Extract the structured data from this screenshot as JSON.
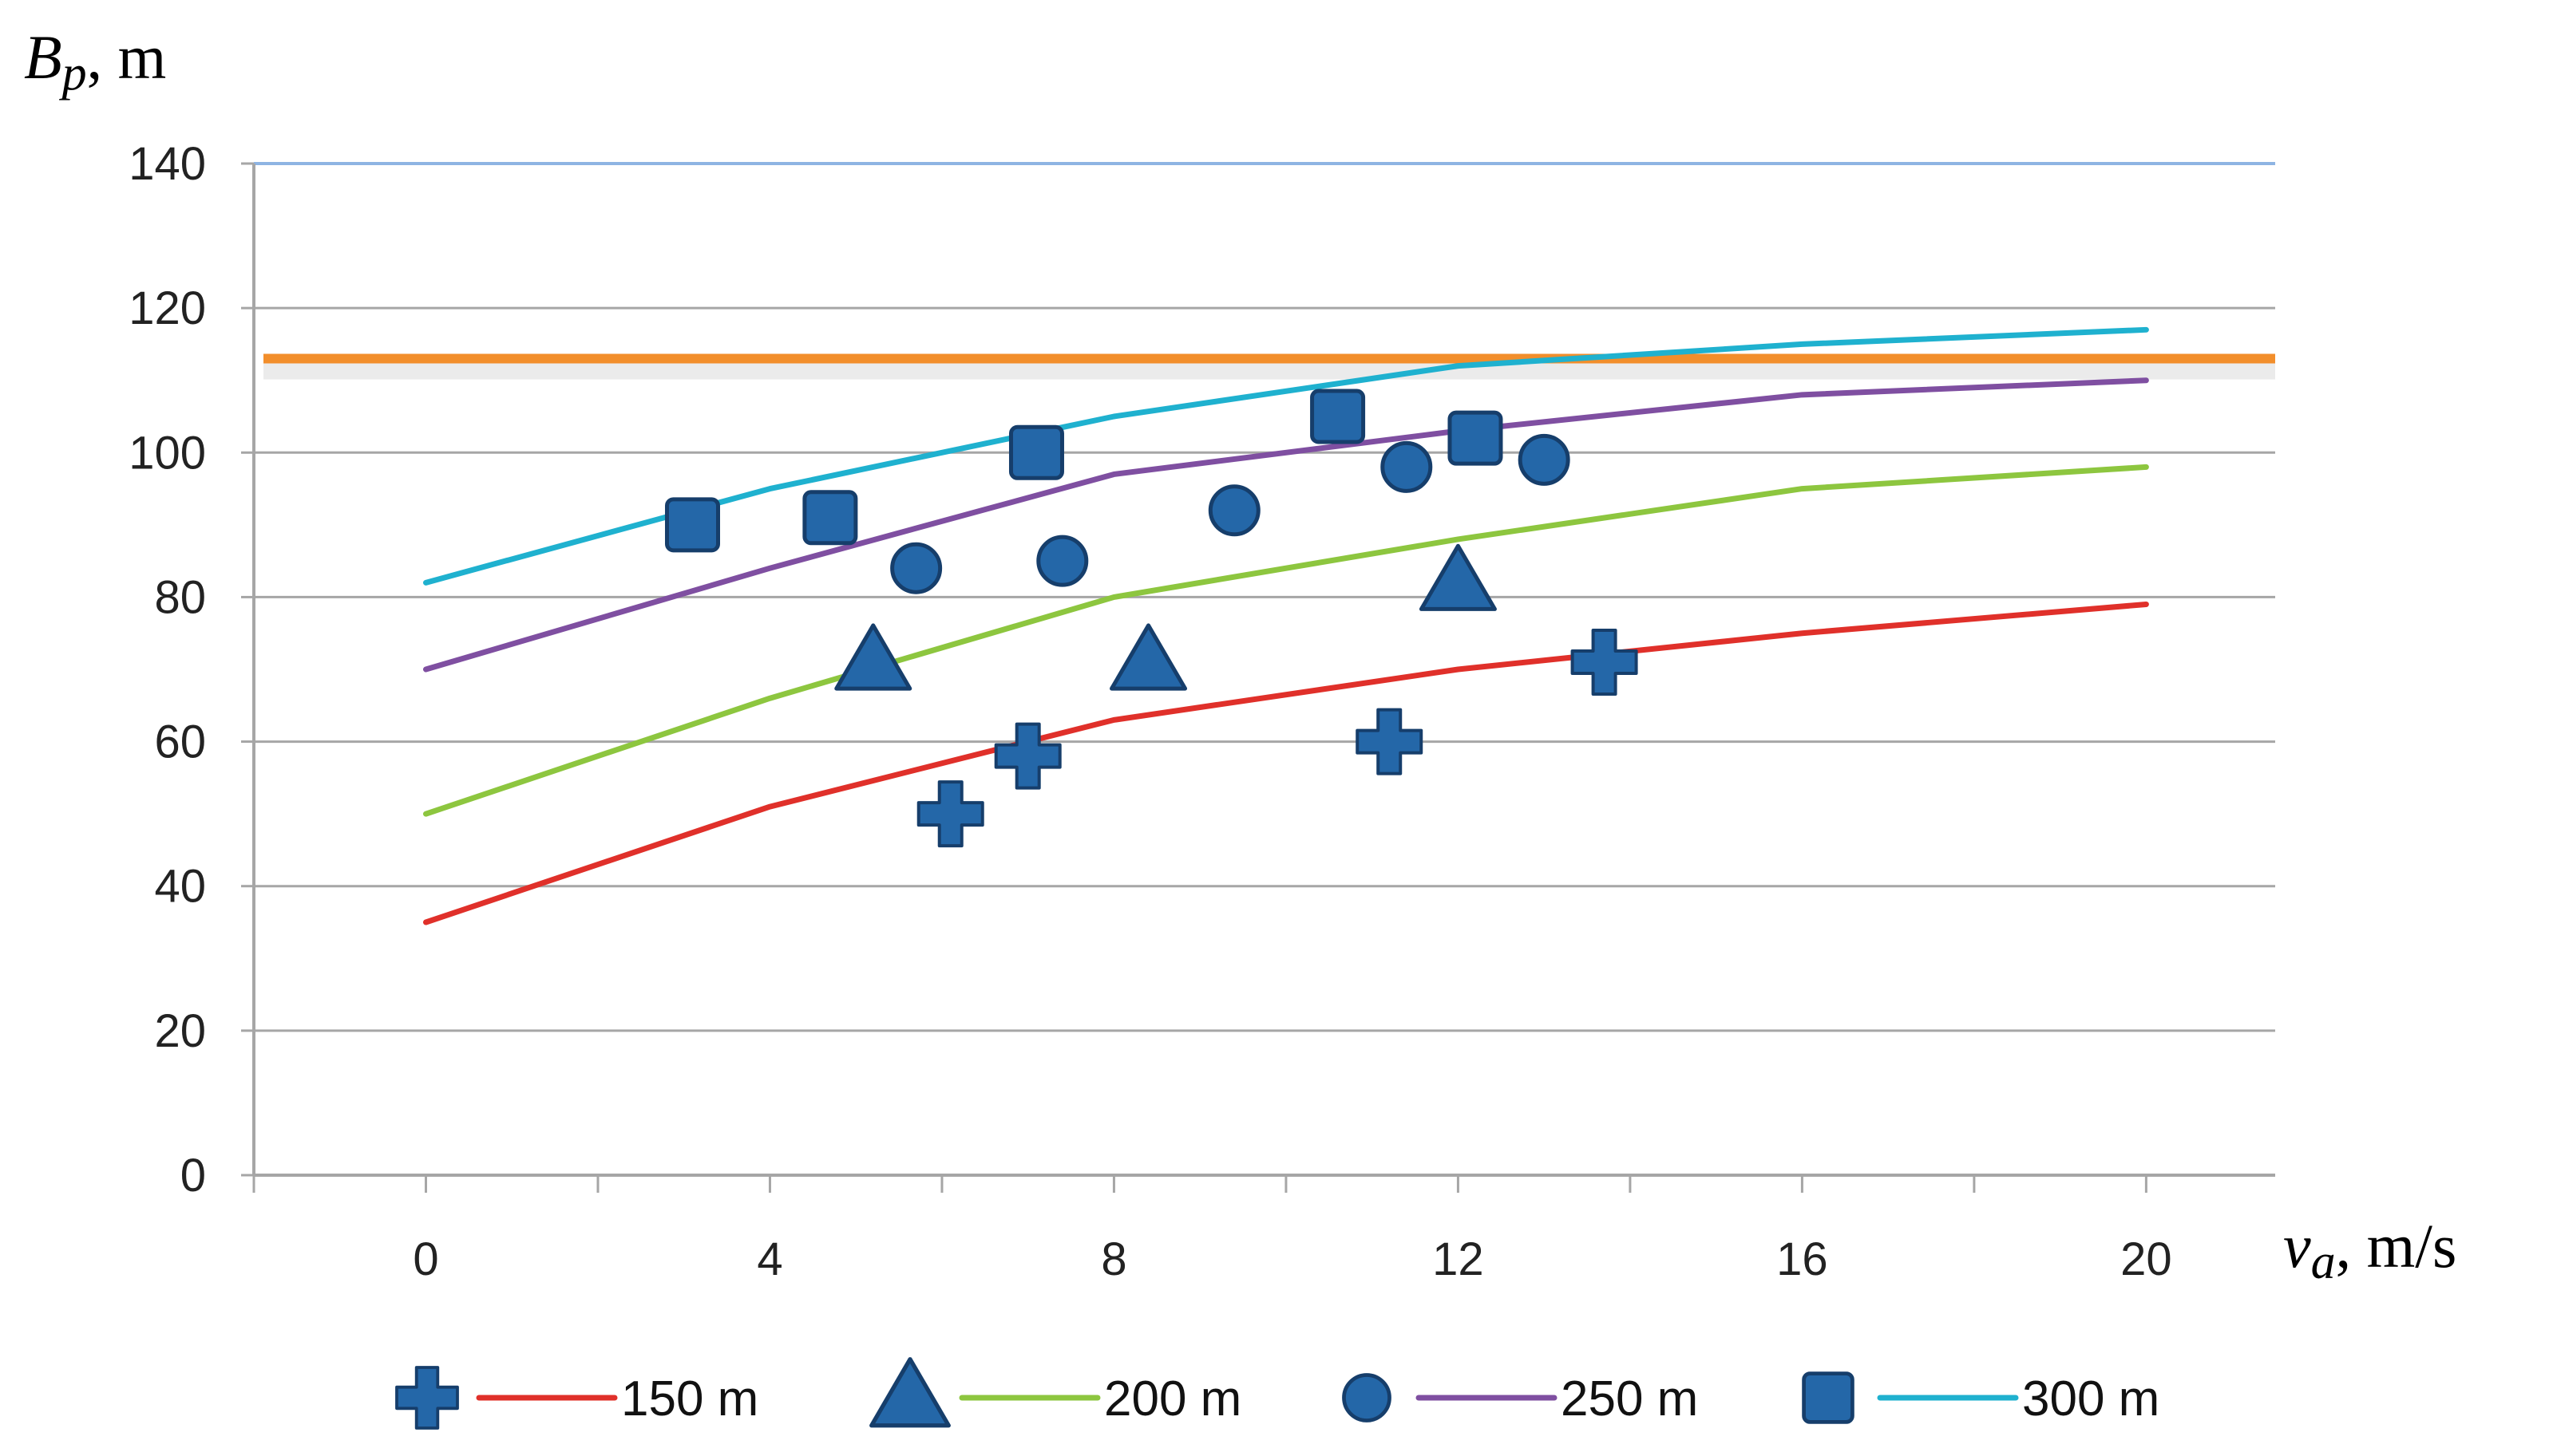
{
  "chart_data": {
    "type": "line",
    "title": "",
    "ylabel": {
      "symbol": "B",
      "subscript": "p",
      "unit": ", m"
    },
    "xlabel": {
      "symbol": "v",
      "subscript": "a",
      "unit": ", m/s"
    },
    "xlim": [
      -2,
      21.5
    ],
    "ylim": [
      0,
      140
    ],
    "xticks": [
      0,
      4,
      8,
      12,
      16,
      20
    ],
    "yticks": [
      0,
      20,
      40,
      60,
      80,
      100,
      120,
      140
    ],
    "grid": true,
    "reference_line": {
      "y": 113,
      "color": "#f28e2b"
    },
    "series": [
      {
        "name": "150 m",
        "color": "#e0302a",
        "marker": "plus",
        "line": {
          "x": [
            0,
            4,
            8,
            12,
            16,
            20
          ],
          "y": [
            35,
            51,
            63,
            70,
            75,
            79
          ]
        },
        "points": {
          "x": [
            6.1,
            7.0,
            11.2,
            13.7
          ],
          "y": [
            50,
            58,
            60,
            71
          ]
        }
      },
      {
        "name": "200 m",
        "color": "#8dc63f",
        "marker": "triangle",
        "line": {
          "x": [
            0,
            4,
            8,
            12,
            16,
            20
          ],
          "y": [
            50,
            66,
            80,
            88,
            95,
            98
          ]
        },
        "points": {
          "x": [
            5.2,
            8.4,
            12.0
          ],
          "y": [
            71,
            71,
            82
          ]
        }
      },
      {
        "name": "250 m",
        "color": "#7f4fa1",
        "marker": "circle",
        "line": {
          "x": [
            0,
            4,
            8,
            12,
            16,
            20
          ],
          "y": [
            70,
            84,
            97,
            103,
            108,
            110
          ]
        },
        "points": {
          "x": [
            5.7,
            7.4,
            9.4,
            11.4,
            13.0
          ],
          "y": [
            84,
            85,
            92,
            98,
            99
          ]
        }
      },
      {
        "name": "300 m",
        "color": "#1fb1cf",
        "marker": "square",
        "line": {
          "x": [
            0,
            4,
            8,
            12,
            16,
            20
          ],
          "y": [
            82,
            95,
            105,
            112,
            115,
            117
          ]
        },
        "points": {
          "x": [
            3.1,
            4.7,
            7.1,
            10.6,
            12.2
          ],
          "y": [
            90,
            91,
            100,
            105,
            102
          ]
        }
      }
    ],
    "marker_color": "#2467a8",
    "marker_stroke": "#163e6b"
  }
}
